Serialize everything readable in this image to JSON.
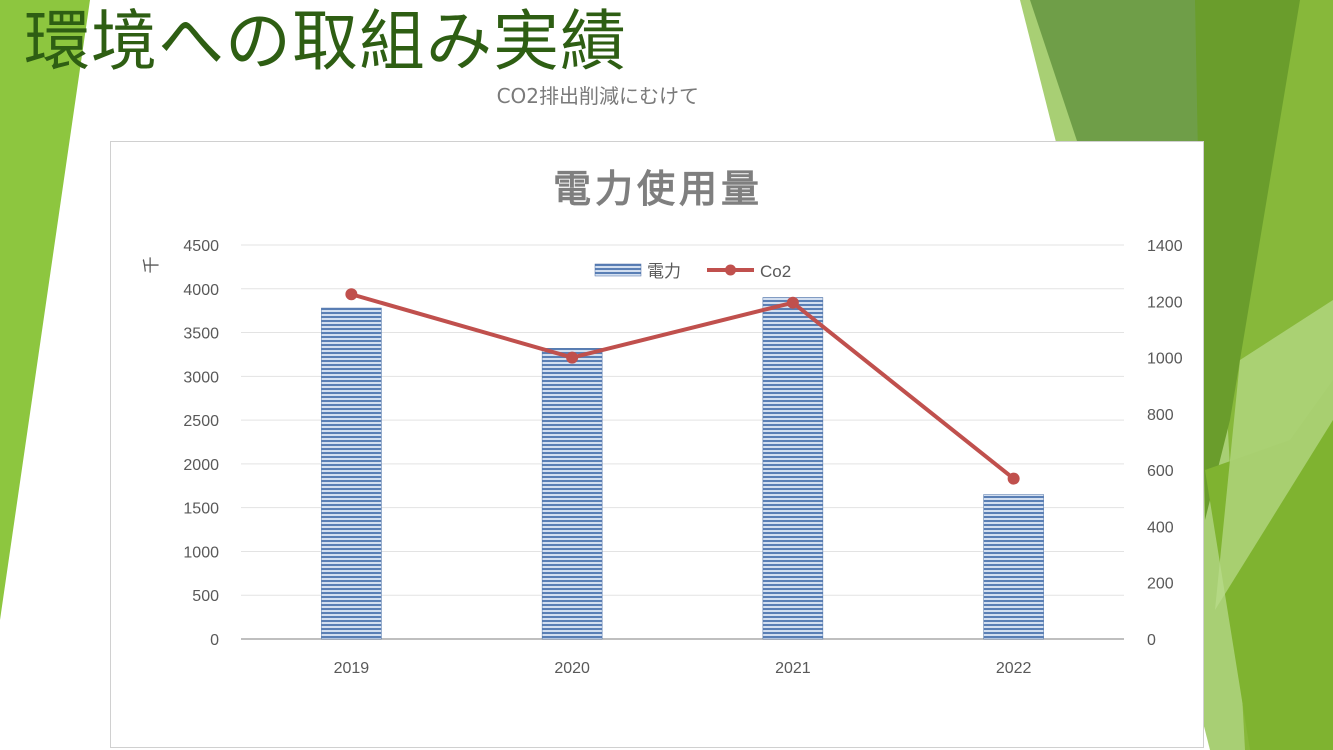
{
  "slide": {
    "title": "環境への取組み実績",
    "subtitle": "CO2排出削減にむけて"
  },
  "colors": {
    "title": "#2e5e13",
    "bar": "#5a7fb5",
    "line": "#c0504d",
    "accent_green": "#8dc63f",
    "dark_green": "#5a8a2b"
  },
  "chart_data": {
    "type": "bar",
    "title": "電力使用量",
    "ylabel": "千",
    "categories": [
      "2019",
      "2020",
      "2021",
      "2022"
    ],
    "series": [
      {
        "name": "電力",
        "type": "bar",
        "axis": "left",
        "values": [
          3780,
          3320,
          3900,
          1650
        ]
      },
      {
        "name": "Co2",
        "type": "line",
        "axis": "right",
        "values": [
          1225,
          1000,
          1195,
          570
        ]
      }
    ],
    "y_left": {
      "min": 0,
      "max": 4500,
      "ticks": [
        "0",
        "500",
        "1000",
        "1500",
        "2000",
        "2500",
        "3000",
        "3500",
        "4000",
        "4500"
      ]
    },
    "y_right": {
      "min": 0,
      "max": 1400,
      "ticks": [
        "0",
        "200",
        "400",
        "600",
        "800",
        "1000",
        "1200",
        "1400"
      ]
    },
    "grid": true,
    "legend_position": "top-center"
  }
}
